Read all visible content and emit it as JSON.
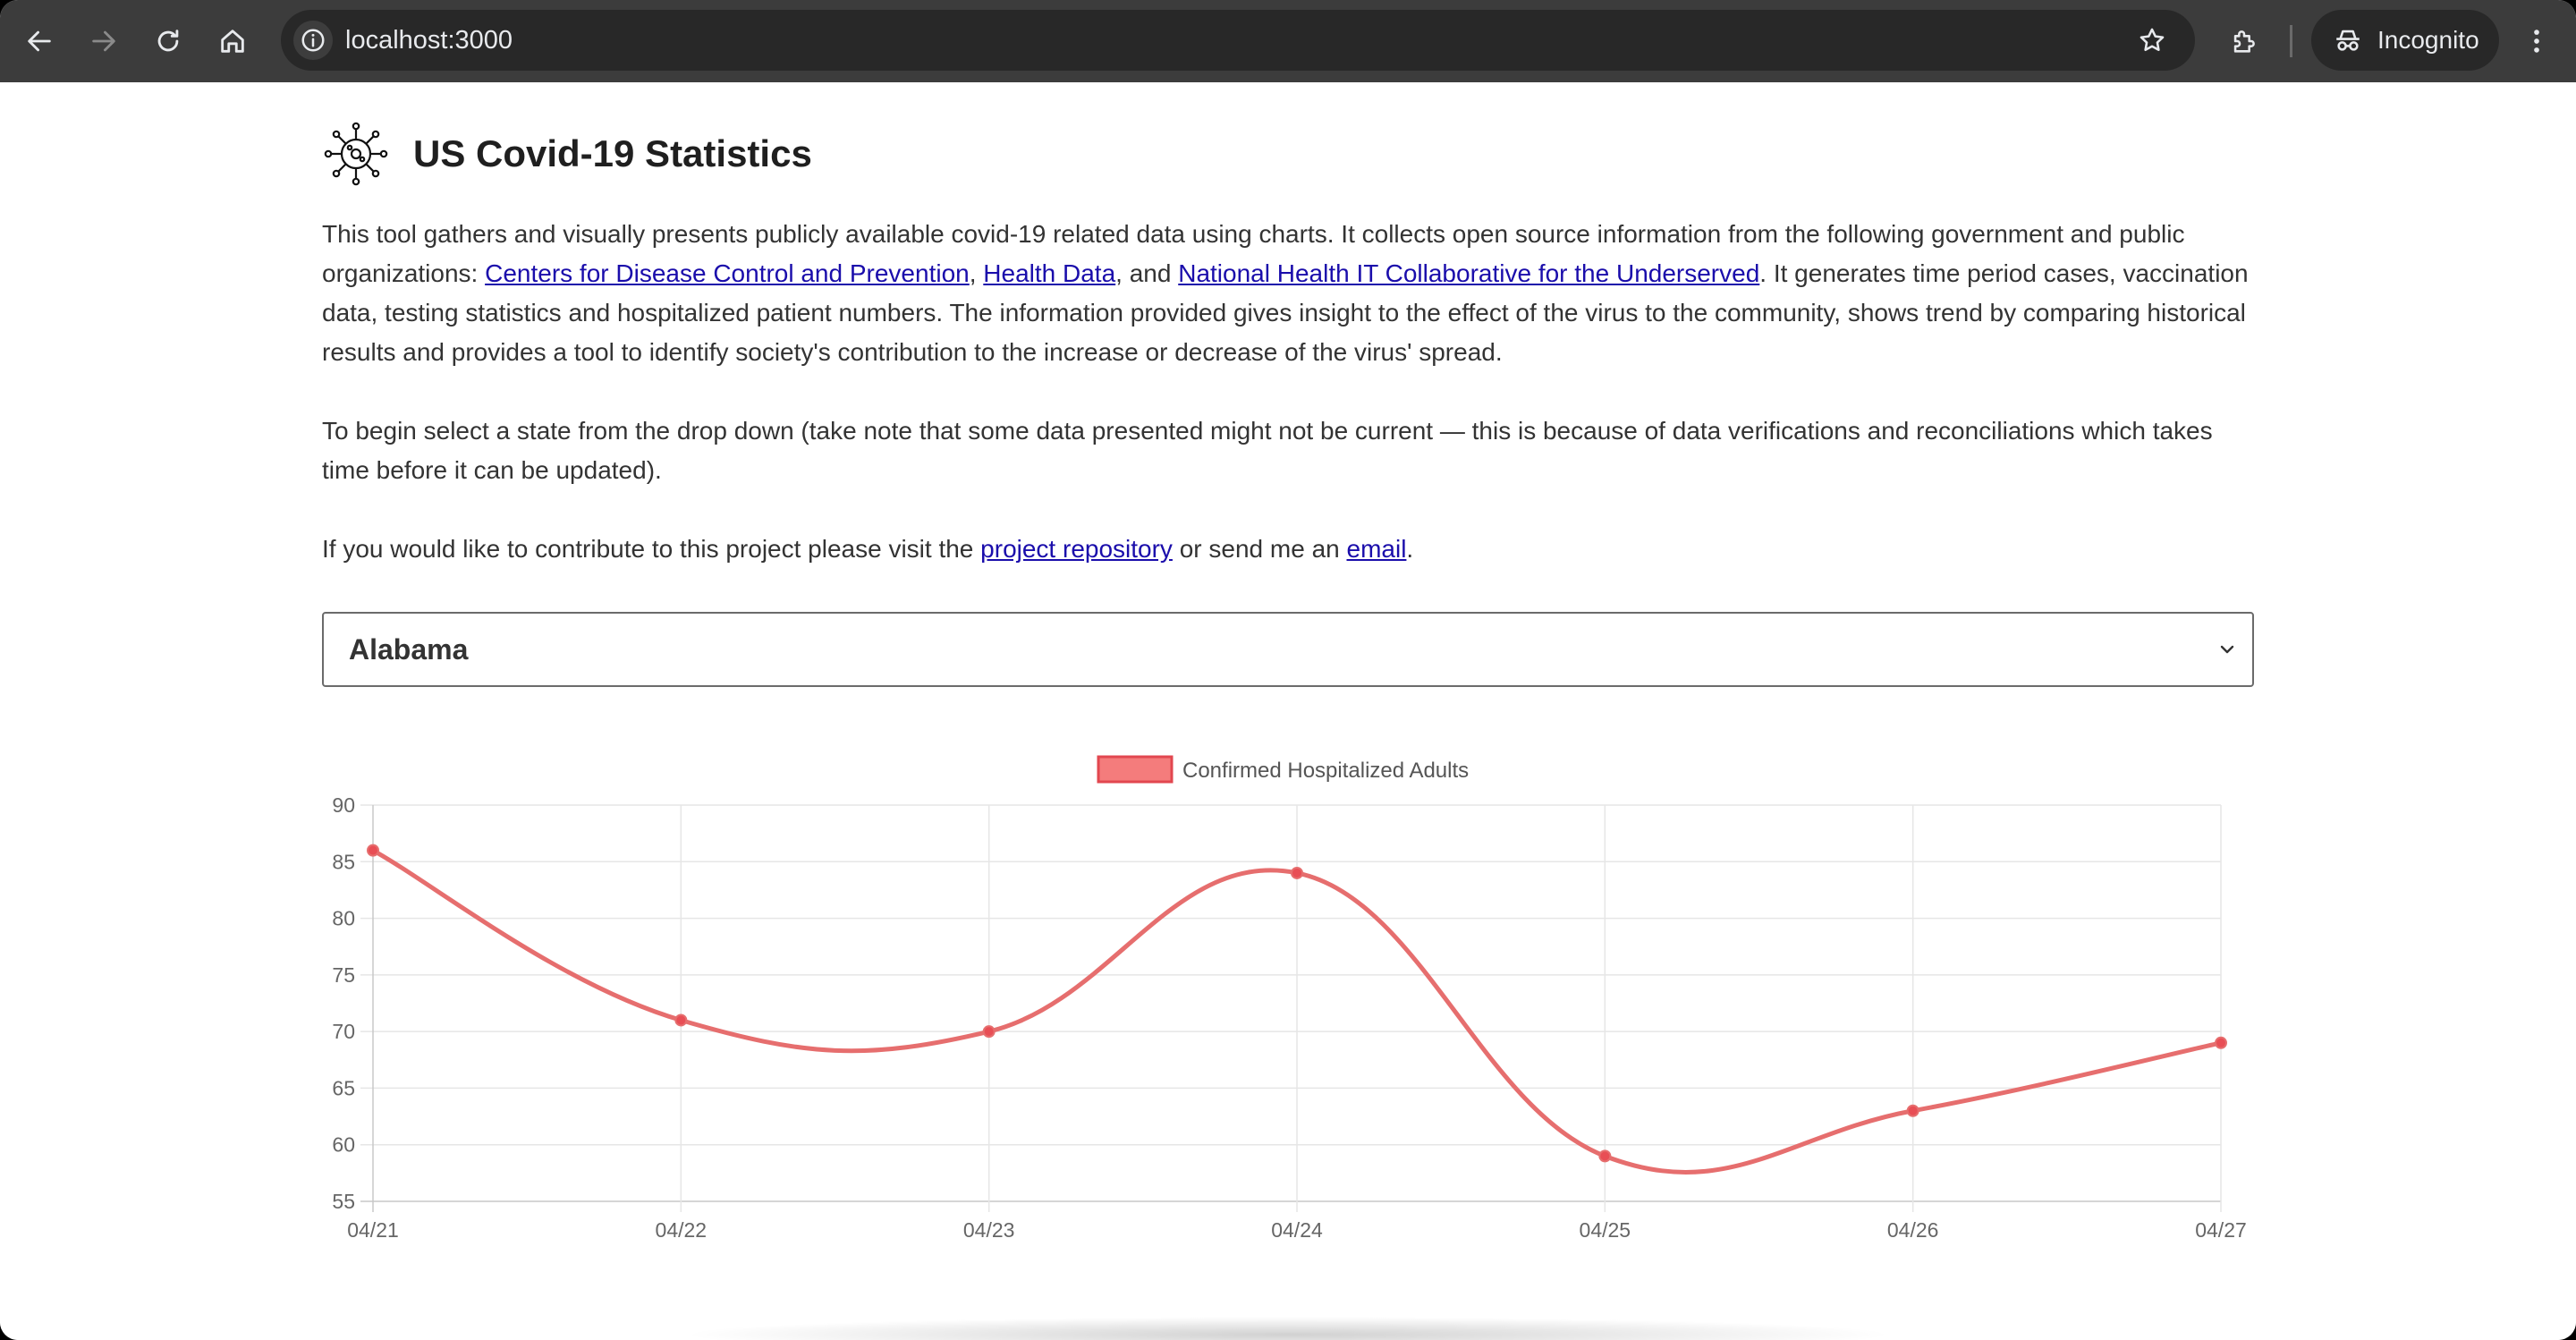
{
  "browser": {
    "url": "localhost:3000",
    "incognito_label": "Incognito",
    "icons": {
      "back": "back-arrow-icon",
      "forward": "forward-arrow-icon",
      "reload": "reload-icon",
      "home": "home-icon",
      "site_info": "info-icon",
      "bookmark": "star-icon",
      "extensions": "puzzle-icon",
      "incognito": "incognito-icon",
      "menu": "kebab-menu-icon"
    }
  },
  "page": {
    "title": "US Covid-19 Statistics",
    "logo_icon": "virus-icon",
    "intro": {
      "text_1": "This tool gathers and visually presents publicly available covid-19 related data using charts. It collects open source information from the following government and public organizations: ",
      "link_cdc": "Centers for Disease Control and Prevention",
      "sep_1": ", ",
      "link_health_data": "Health Data",
      "sep_2": ", and ",
      "link_nhit": "National Health IT Collaborative for the Underserved",
      "text_2": ". It generates time period cases, vaccination data, testing statistics and hospitalized patient numbers. The information provided gives insight to the effect of the virus to the community, shows trend by comparing historical results and provides a tool to identify society's contribution to the increase or decrease of the virus' spread."
    },
    "instructions": "To begin select a state from the drop down (take note that some data presented might not be current — this is because of data verifications and reconciliations which takes time before it can be updated).",
    "contribute": {
      "text_1": "If you would like to contribute to this project please visit the ",
      "link_repo": "project repository",
      "text_2": " or send me an ",
      "link_email": "email",
      "text_3": "."
    },
    "state_select": {
      "selected": "Alabama"
    }
  },
  "chart_data": {
    "type": "line",
    "title": "",
    "xlabel": "",
    "ylabel": "",
    "categories": [
      "04/21",
      "04/22",
      "04/23",
      "04/24",
      "04/25",
      "04/26",
      "04/27"
    ],
    "series": [
      {
        "name": "Confirmed Hospitalized Adults",
        "values": [
          86,
          71,
          70,
          84,
          59,
          63,
          69
        ],
        "color": "#e66e6e",
        "fill": "#f47c7c"
      }
    ],
    "ylim": [
      55,
      90
    ],
    "yticks": [
      "90",
      "85",
      "80",
      "75",
      "70",
      "65",
      "60",
      "55"
    ],
    "legend_position": "top",
    "grid": true,
    "smooth": true
  }
}
